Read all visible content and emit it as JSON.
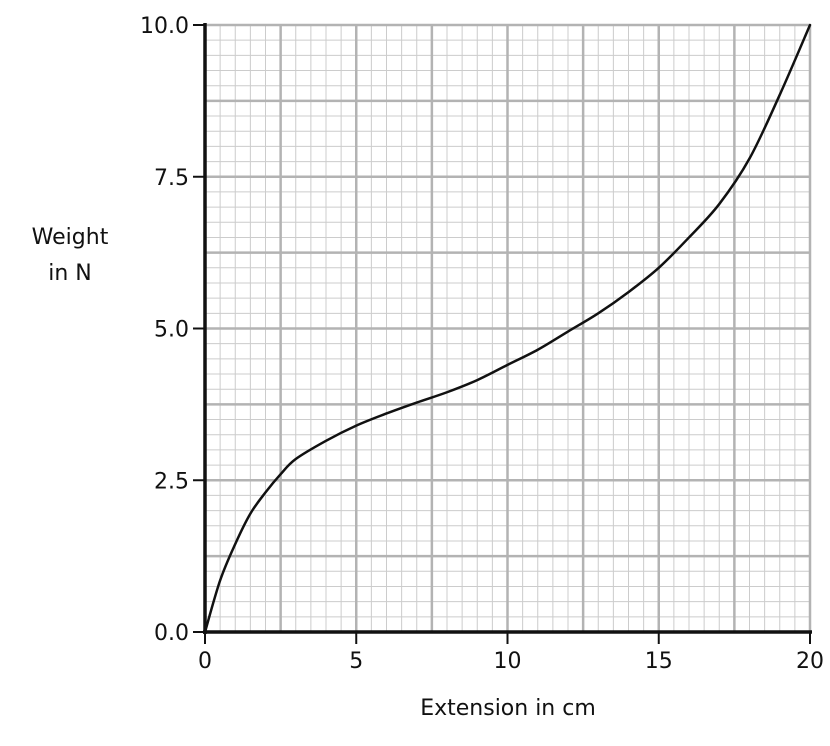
{
  "chart_data": {
    "type": "line",
    "title": "",
    "xlabel": "Extension in cm",
    "ylabel_lines": [
      "Weight",
      "in N"
    ],
    "xlim": [
      0,
      20
    ],
    "ylim": [
      0,
      10
    ],
    "x_ticks": [
      0,
      5,
      10,
      15,
      20
    ],
    "x_tick_labels": [
      "0",
      "5",
      "10",
      "15",
      "20"
    ],
    "y_ticks": [
      0,
      2.5,
      5,
      7.5,
      10
    ],
    "y_tick_labels": [
      "0.0",
      "2.5",
      "5.0",
      "7.5",
      "10.0"
    ],
    "grid": true,
    "grid_major_x_step": 2.5,
    "grid_major_y_step": 1.25,
    "grid_minor_x_step": 0.5,
    "grid_minor_y_step": 0.25,
    "series": [
      {
        "color": "#111111",
        "x": [
          0,
          0.5,
          1,
          1.5,
          2,
          2.5,
          3,
          4,
          5,
          6,
          7,
          8,
          9,
          10,
          11,
          12,
          13,
          14,
          15,
          16,
          17,
          18,
          19,
          20
        ],
        "y": [
          0,
          0.85,
          1.45,
          1.95,
          2.3,
          2.6,
          2.85,
          3.15,
          3.4,
          3.6,
          3.78,
          3.95,
          4.15,
          4.4,
          4.65,
          4.95,
          5.25,
          5.6,
          6.0,
          6.5,
          7.05,
          7.8,
          8.85,
          10.0
        ]
      }
    ],
    "colors": {
      "grid_major": "#b3b3b3",
      "grid_minor": "#cccccc",
      "axis": "#111111",
      "curve": "#111111"
    }
  }
}
